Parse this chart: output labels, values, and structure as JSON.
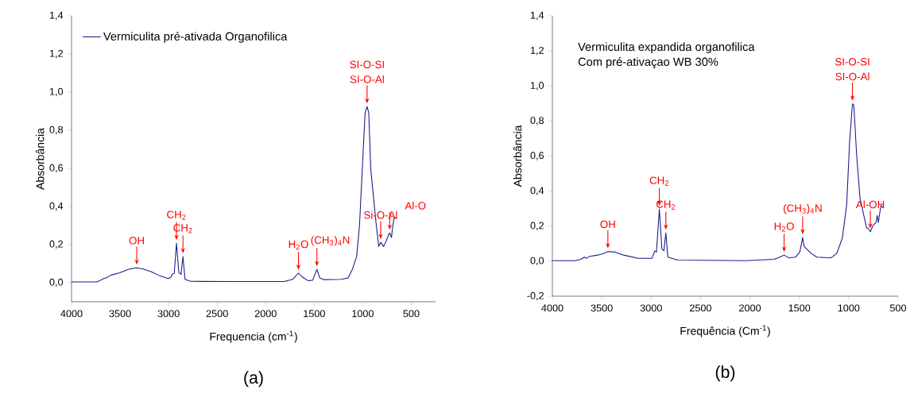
{
  "chart_data": [
    {
      "type": "line",
      "xlabel": "Frequencia (cm$^{-1}$)",
      "ylabel": "Absorbância",
      "xlim": [
        4000,
        250
      ],
      "xticks": [
        4000,
        3500,
        3000,
        2500,
        2000,
        1500,
        1000,
        500
      ],
      "ylim": [
        -0.1,
        1.4
      ],
      "yticks": [
        {
          "value": 0,
          "label": "0,0"
        },
        {
          "value": 0.2,
          "label": "0,2"
        },
        {
          "value": 0.4,
          "label": "0,4"
        },
        {
          "value": 0.6,
          "label": "0,6"
        },
        {
          "value": 0.8,
          "label": "0,8"
        },
        {
          "value": 1.0,
          "label": "1,0"
        },
        {
          "value": 1.2,
          "label": "1,2"
        },
        {
          "value": 1.4,
          "label": "1,4"
        }
      ],
      "legend": "top left",
      "marker": "none",
      "line_style": "solid",
      "series": [
        {
          "name": "Vermiculita pré-ativada Organofilica",
          "color": "#1a1a8c",
          "x": [
            4000,
            3737,
            3708,
            3673,
            3644,
            3591,
            3503,
            3416,
            3328,
            3270,
            3182,
            3094,
            3006,
            2977,
            2960,
            2942,
            2919,
            2895,
            2872,
            2852,
            2831,
            2773,
            2393,
            1808,
            1720,
            1662,
            1618,
            1560,
            1516,
            1472,
            1443,
            1399,
            1224,
            1151,
            1107,
            1063,
            1034,
            1005,
            976,
            955,
            938,
            917,
            888,
            859,
            835,
            815,
            786,
            756,
            733,
            722,
            704,
            692,
            675,
            654
          ],
          "values": [
            0.004,
            0.004,
            0.011,
            0.021,
            0.025,
            0.04,
            0.052,
            0.07,
            0.078,
            0.073,
            0.058,
            0.037,
            0.022,
            0.028,
            0.046,
            0.048,
            0.207,
            0.055,
            0.043,
            0.137,
            0.018,
            0.007,
            0.006,
            0.006,
            0.018,
            0.051,
            0.028,
            0.01,
            0.013,
            0.07,
            0.025,
            0.016,
            0.018,
            0.025,
            0.07,
            0.137,
            0.294,
            0.593,
            0.891,
            0.924,
            0.891,
            0.593,
            0.443,
            0.294,
            0.19,
            0.212,
            0.19,
            0.222,
            0.252,
            0.261,
            0.237,
            0.294,
            0.342,
            0.339
          ]
        }
      ],
      "annotations": [
        {
          "text": "OH",
          "x": 3328,
          "y": 0.078
        },
        {
          "text": "CH$_{2}$",
          "x": 2919,
          "y": 0.207
        },
        {
          "text": "CH$_{2}$",
          "x": 2852,
          "y": 0.137
        },
        {
          "text": "H$_{2}$O",
          "x": 1662,
          "y": 0.051
        },
        {
          "text": "(CH$_{3}$)$_{4}$N",
          "x": 1472,
          "y": 0.07
        },
        "SI-O-SI",
        {
          "text": "SI-O-Al",
          "x": 955,
          "y": 0.924
        },
        {
          "text": "Si-O-Al",
          "x": 815,
          "y": 0.212
        },
        {
          "text": "Al-O",
          "x": 722,
          "y": 0.261
        },
        "(a)"
      ]
    },
    {
      "type": "line",
      "xlabel": "Frequência (Cm$^{-1}$)",
      "ylabel": "Absorbância",
      "xlim": [
        4000,
        500
      ],
      "xticks": [
        4000,
        3500,
        3000,
        2500,
        2000,
        1500,
        1000,
        500
      ],
      "ylim": [
        -0.2,
        1.4
      ],
      "yticks": [
        {
          "value": -0.2,
          "label": "-0,2"
        },
        {
          "value": 0,
          "label": "0,0"
        },
        {
          "value": 0.2,
          "label": "0,2"
        },
        {
          "value": 0.4,
          "label": "0,4"
        },
        {
          "value": 0.6,
          "label": "0,6"
        },
        {
          "value": 0.8,
          "label": "0,8"
        },
        {
          "value": 1.0,
          "label": "1,0"
        },
        {
          "value": 1.2,
          "label": "1,2"
        },
        {
          "value": 1.4,
          "label": "1,4"
        }
      ],
      "marker": "none",
      "line_style": "solid",
      "series": [
        {
          "color": "#1a1a8c",
          "x": [
            4000,
            3770,
            3712,
            3677,
            3654,
            3626,
            3539,
            3482,
            3438,
            3366,
            3280,
            3136,
            2992,
            2963,
            2946,
            2917,
            2891,
            2871,
            2851,
            2831,
            2733,
            2042,
            1754,
            1682,
            1654,
            1610,
            1538,
            1495,
            1466,
            1452,
            1380,
            1323,
            1179,
            1121,
            1064,
            1020,
            991,
            962,
            948,
            919,
            885,
            847,
            818,
            804,
            781,
            752,
            723,
            712,
            700,
            674,
            651
          ],
          "values": [
            0.003,
            0.003,
            0.011,
            0.023,
            0.016,
            0.027,
            0.035,
            0.044,
            0.055,
            0.052,
            0.035,
            0.016,
            0.016,
            0.058,
            0.052,
            0.297,
            0.068,
            0.06,
            0.161,
            0.023,
            0.006,
            0.003,
            0.011,
            0.027,
            0.035,
            0.019,
            0.023,
            0.052,
            0.135,
            0.084,
            0.044,
            0.023,
            0.019,
            0.044,
            0.132,
            0.326,
            0.681,
            0.898,
            0.89,
            0.6,
            0.358,
            0.261,
            0.189,
            0.189,
            0.168,
            0.205,
            0.221,
            0.261,
            0.221,
            0.318,
            0.302
          ]
        }
      ],
      "annotations": [
        {
          "text": "OH",
          "x": 3438,
          "y": 0.055
        },
        {
          "text": "CH$_{2}$",
          "x": 2917,
          "y": 0.297
        },
        {
          "text": "CH$_{2}$",
          "x": 2851,
          "y": 0.161
        },
        {
          "text": "H$_{2}$O",
          "x": 1654,
          "y": 0.035
        },
        {
          "text": "(CH$_{3}$)$_{4}$N",
          "x": 1466,
          "y": 0.135
        },
        "SI-O-SI",
        {
          "text": "SI-O-Al",
          "x": 962,
          "y": 0.898
        },
        {
          "text": "Al-OH",
          "x": 781,
          "y": 0.168
        },
        "Vermiculita expandida organofilica",
        "Com pré-ativaçao  WB 30%",
        "(b)"
      ]
    }
  ]
}
